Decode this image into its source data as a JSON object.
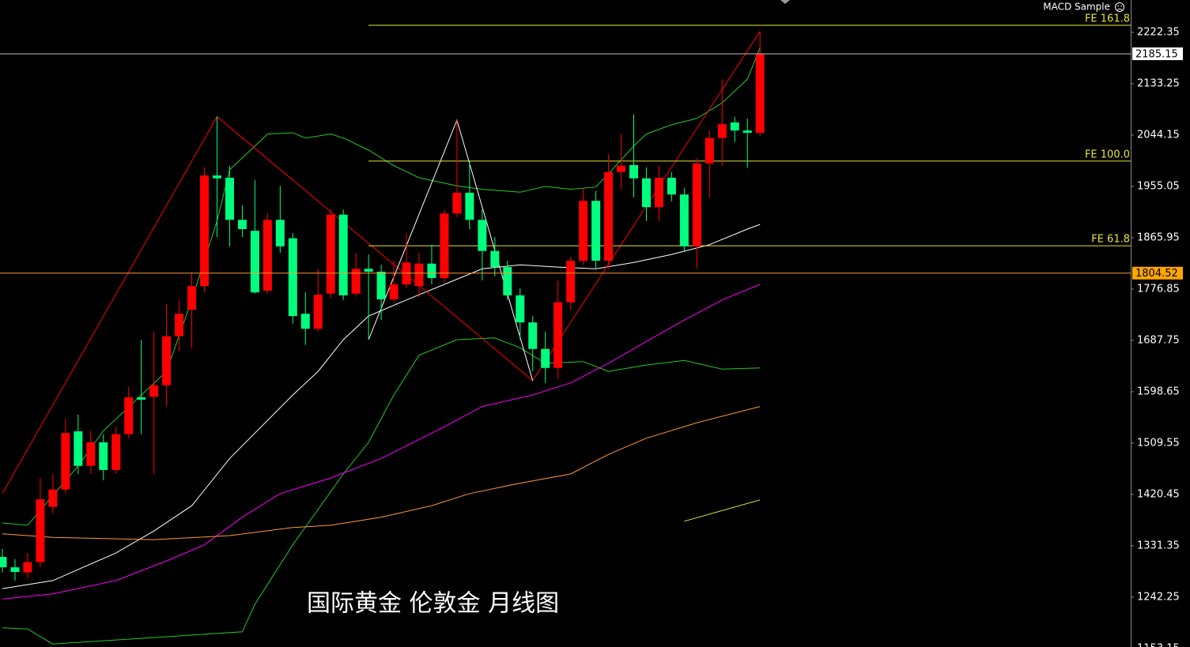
{
  "chart_data": {
    "type": "candlestick",
    "title": "国际黄金 伦敦金 月线图",
    "indicator": "MACD Sample",
    "categories": [
      null,
      null,
      null,
      null,
      null,
      null,
      null,
      null,
      null,
      null,
      null,
      null,
      null,
      null,
      null,
      null,
      null,
      null,
      null,
      null,
      null,
      null,
      null,
      null,
      null,
      null,
      null,
      null,
      null,
      null,
      null,
      null,
      null,
      null,
      null,
      null,
      null,
      null,
      null,
      null,
      null,
      null,
      null,
      null,
      null,
      null,
      null,
      null,
      null,
      null,
      null,
      null,
      null,
      null,
      null,
      null,
      null,
      null,
      null,
      null,
      null
    ],
    "open": [
      1312,
      1294,
      1285,
      1303,
      1399,
      1429,
      1530,
      1470,
      1511,
      1463,
      1525,
      1589,
      1590,
      1610,
      1695,
      1741,
      1782,
      1974,
      1970,
      1897,
      1878,
      1774,
      1897,
      1865,
      1734,
      1708,
      1769,
      1906,
      1769,
      1812,
      1807,
      1759,
      1785,
      1782,
      1821,
      1796,
      1908,
      1944,
      1897,
      1843,
      1815,
      1766,
      1719,
      1673,
      1640,
      1754,
      1826,
      1930,
      1826,
      1980,
      1992,
      1969,
      1919,
      1970,
      1941,
      1851,
      1995,
      2039,
      2066,
      2052,
      2048
    ],
    "high": [
      1326,
      1308,
      1319,
      1449,
      1456,
      1552,
      1559,
      1531,
      1525,
      1538,
      1607,
      1689,
      1703,
      1751,
      1758,
      1806,
      1988,
      2076,
      1991,
      1922,
      1966,
      1908,
      1956,
      1874,
      1771,
      1812,
      1915,
      1915,
      1840,
      1837,
      1819,
      1826,
      1874,
      1840,
      1854,
      1915,
      2070,
      1998,
      1915,
      1867,
      1826,
      1778,
      1730,
      1703,
      1792,
      1833,
      1952,
      1947,
      2011,
      2046,
      2080,
      1988,
      1991,
      1980,
      1952,
      2004,
      2052,
      2141,
      2076,
      2073,
      2224
    ],
    "low": [
      1285,
      1271,
      1275,
      1294,
      1388,
      1422,
      1456,
      1456,
      1445,
      1456,
      1518,
      1525,
      1456,
      1573,
      1669,
      1675,
      1771,
      1867,
      1851,
      1867,
      1769,
      1769,
      1840,
      1717,
      1680,
      1703,
      1760,
      1758,
      1764,
      1689,
      1723,
      1755,
      1778,
      1763,
      1785,
      1788,
      1902,
      1881,
      1792,
      1799,
      1758,
      1689,
      1634,
      1614,
      1621,
      1741,
      1819,
      1812,
      1812,
      1950,
      1936,
      1895,
      1895,
      1929,
      1843,
      1812,
      1936,
      1991,
      2032,
      1987,
      2043
    ],
    "close": [
      1294,
      1286,
      1303,
      1412,
      1429,
      1527,
      1470,
      1511,
      1463,
      1525,
      1589,
      1585,
      1610,
      1695,
      1734,
      1782,
      1974,
      1969,
      1897,
      1881,
      1771,
      1897,
      1851,
      1730,
      1708,
      1767,
      1906,
      1766,
      1812,
      1807,
      1759,
      1785,
      1823,
      1821,
      1796,
      1908,
      1944,
      1897,
      1843,
      1815,
      1766,
      1719,
      1673,
      1640,
      1754,
      1826,
      1930,
      1826,
      1980,
      1991,
      1969,
      1919,
      1970,
      1941,
      1851,
      1995,
      2039,
      2063,
      2052,
      2048,
      2185.15
    ],
    "up_color": "#ff0000",
    "down_color": "#00ff7f",
    "lines": [
      {
        "color": "#22cc22",
        "x": [
          0,
          2,
          6,
          8,
          13,
          15,
          17,
          18,
          20,
          21,
          23,
          24,
          26,
          27,
          29,
          31,
          33,
          36,
          38,
          41,
          43,
          45,
          47,
          48,
          50,
          51,
          53,
          55,
          57,
          59,
          60
        ],
        "values": [
          1371,
          1367,
          1470,
          1531,
          1634,
          1758,
          1895,
          1984,
          2025,
          2046,
          2048,
          2039,
          2046,
          2039,
          2018,
          1991,
          1970,
          1956,
          1950,
          1945,
          1955,
          1950,
          1954,
          1977,
          2025,
          2046,
          2062,
          2073,
          2100,
          2141,
          2196
        ]
      },
      {
        "color": "#22cc22",
        "x": [
          0,
          2,
          4,
          19,
          20,
          23,
          27,
          29,
          31,
          33,
          36,
          39,
          41,
          43,
          46,
          48,
          51,
          54,
          57,
          60
        ],
        "values": [
          1189,
          1187,
          1161,
          1182,
          1230,
          1333,
          1456,
          1511,
          1593,
          1662,
          1689,
          1692,
          1675,
          1648,
          1651,
          1634,
          1645,
          1653,
          1638,
          1640
        ]
      },
      {
        "color": "#ffffff",
        "x": [
          0,
          4,
          9,
          12,
          15,
          18,
          23,
          25,
          27,
          29,
          32,
          35,
          38,
          41,
          44,
          47,
          50,
          53,
          56,
          59,
          60
        ],
        "values": [
          1257,
          1271,
          1319,
          1357,
          1401,
          1483,
          1593,
          1634,
          1689,
          1730,
          1758,
          1785,
          1812,
          1819,
          1815,
          1812,
          1823,
          1837,
          1854,
          1881,
          1889
        ]
      },
      {
        "color": "#ff00ff",
        "x": [
          0,
          4,
          9,
          13,
          16,
          19,
          22,
          26,
          30,
          35,
          38,
          42,
          45,
          48,
          51,
          54,
          57,
          60
        ],
        "values": [
          1239,
          1248,
          1271,
          1305,
          1333,
          1381,
          1422,
          1449,
          1483,
          1538,
          1573,
          1593,
          1614,
          1648,
          1686,
          1723,
          1758,
          1785
        ]
      },
      {
        "color": "#ff9933",
        "x": [
          0,
          4,
          12,
          18,
          23,
          26,
          30,
          34,
          37,
          41,
          45,
          48,
          51,
          55,
          60
        ],
        "values": [
          1352,
          1346,
          1342,
          1349,
          1363,
          1367,
          1381,
          1401,
          1422,
          1440,
          1456,
          1490,
          1518,
          1545,
          1573
        ]
      },
      {
        "color": "#e6e632",
        "x": [
          54,
          60
        ],
        "values": [
          1374,
          1411
        ]
      },
      {
        "color": "#ff0000",
        "x": [
          0,
          17,
          42,
          60
        ],
        "values": [
          1422,
          2076,
          1618,
          2224
        ]
      },
      {
        "color": "#ffffff",
        "x": [
          29,
          36,
          42
        ],
        "values": [
          1689,
          2070,
          1618
        ]
      }
    ],
    "levels": [
      {
        "label": "FE 161.8",
        "value": 2234.7,
        "x": 29,
        "color": "#e6e632"
      },
      {
        "label": "FE 100.0",
        "value": 1999,
        "x": 29,
        "color": "#e6e632"
      },
      {
        "label": "FE 61.8",
        "value": 1852,
        "x": 29,
        "color": "#e6e632"
      }
    ],
    "price_lines": [
      {
        "value": 2185.15,
        "color": "#c0c0c0",
        "box": "#ffffff"
      },
      {
        "value": 1804.52,
        "color": "#ff9933",
        "box": "#ffa500"
      }
    ],
    "ylim": [
      1153,
      2278.5
    ],
    "yticks": [
      2222.35,
      2133.25,
      2044.15,
      1955.05,
      1865.95,
      1776.85,
      1687.75,
      1598.65,
      1509.55,
      1420.45,
      1331.35,
      1242.25,
      1153.15
    ]
  }
}
